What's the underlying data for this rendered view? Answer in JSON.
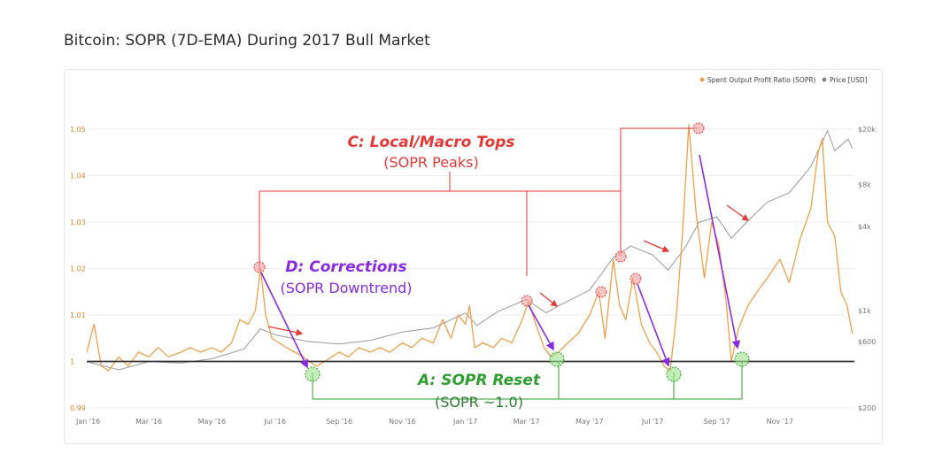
{
  "title": "Bitcoin: SOPR (7D-EMA) During 2017 Bull Market",
  "colors": {
    "sopr": "#f0a04b",
    "price": "#9a9a9a",
    "annot_red": "#e53935",
    "annot_purple": "#8a2be2",
    "annot_green": "#2e9e2e",
    "baseline": "#333333"
  },
  "legend": [
    {
      "label": "Spent Output Profit Ratio (SOPR)",
      "color": "#f0a04b"
    },
    {
      "label": "Price [USD]",
      "color": "#888888"
    }
  ],
  "annotations": {
    "c_title": "C: Local/Macro Tops",
    "c_sub": "(SOPR Peaks)",
    "d_title": "D: Corrections",
    "d_sub": "(SOPR Downtrend)",
    "a_title": "A: SOPR Reset",
    "a_sub": "(SOPR ~1.0)"
  },
  "chart_data": {
    "type": "line",
    "x_ticks": [
      "Jan '16",
      "Mar '16",
      "May '16",
      "Jul '16",
      "Sep '16",
      "Nov '16",
      "Jan '17",
      "Mar '17",
      "May '17",
      "Jul '17",
      "Sep '17",
      "Nov '17"
    ],
    "y_left_ticks": [
      "1.05",
      "1.04",
      "1.03",
      "1.02",
      "1.01",
      "1",
      "0.99"
    ],
    "y_left_range": [
      0.99,
      1.05
    ],
    "y_right_ticks": [
      "$20k",
      "$8k",
      "$4k",
      "$1k",
      "$600",
      "$200"
    ],
    "y_right_log": true,
    "baseline": 1.0,
    "series": [
      {
        "name": "Spent Output Profit Ratio (SOPR)",
        "axis": "left",
        "points": [
          [
            "2016-01-01",
            1.002
          ],
          [
            "2016-01-08",
            1.008
          ],
          [
            "2016-01-15",
            0.999
          ],
          [
            "2016-01-22",
            0.998
          ],
          [
            "2016-02-01",
            1.001
          ],
          [
            "2016-02-10",
            0.999
          ],
          [
            "2016-02-20",
            1.002
          ],
          [
            "2016-03-01",
            1.001
          ],
          [
            "2016-03-10",
            1.003
          ],
          [
            "2016-03-20",
            1.001
          ],
          [
            "2016-04-01",
            1.002
          ],
          [
            "2016-04-10",
            1.003
          ],
          [
            "2016-04-20",
            1.002
          ],
          [
            "2016-05-01",
            1.003
          ],
          [
            "2016-05-10",
            1.002
          ],
          [
            "2016-05-20",
            1.004
          ],
          [
            "2016-05-28",
            1.009
          ],
          [
            "2016-06-05",
            1.008
          ],
          [
            "2016-06-12",
            1.011
          ],
          [
            "2016-06-17",
            1.02
          ],
          [
            "2016-06-22",
            1.01
          ],
          [
            "2016-06-28",
            1.005
          ],
          [
            "2016-07-05",
            1.004
          ],
          [
            "2016-07-12",
            1.003
          ],
          [
            "2016-07-20",
            1.002
          ],
          [
            "2016-07-28",
            1.001
          ],
          [
            "2016-08-03",
            1.0
          ],
          [
            "2016-08-10",
            0.999
          ],
          [
            "2016-08-18",
            1.0
          ],
          [
            "2016-08-25",
            1.001
          ],
          [
            "2016-09-01",
            1.002
          ],
          [
            "2016-09-10",
            1.001
          ],
          [
            "2016-09-20",
            1.003
          ],
          [
            "2016-10-01",
            1.002
          ],
          [
            "2016-10-10",
            1.003
          ],
          [
            "2016-10-20",
            1.002
          ],
          [
            "2016-11-01",
            1.004
          ],
          [
            "2016-11-10",
            1.003
          ],
          [
            "2016-11-20",
            1.005
          ],
          [
            "2016-12-01",
            1.004
          ],
          [
            "2016-12-10",
            1.009
          ],
          [
            "2016-12-18",
            1.005
          ],
          [
            "2016-12-25",
            1.01
          ],
          [
            "2017-01-01",
            1.008
          ],
          [
            "2017-01-05",
            1.012
          ],
          [
            "2017-01-10",
            1.003
          ],
          [
            "2017-01-18",
            1.004
          ],
          [
            "2017-01-28",
            1.003
          ],
          [
            "2017-02-05",
            1.005
          ],
          [
            "2017-02-15",
            1.004
          ],
          [
            "2017-02-25",
            1.009
          ],
          [
            "2017-03-03",
            1.013
          ],
          [
            "2017-03-10",
            1.008
          ],
          [
            "2017-03-18",
            1.003
          ],
          [
            "2017-03-25",
            1.001
          ],
          [
            "2017-04-01",
            1.002
          ],
          [
            "2017-04-10",
            1.004
          ],
          [
            "2017-04-20",
            1.006
          ],
          [
            "2017-05-01",
            1.01
          ],
          [
            "2017-05-10",
            1.015
          ],
          [
            "2017-05-16",
            1.005
          ],
          [
            "2017-05-24",
            1.022
          ],
          [
            "2017-05-30",
            1.012
          ],
          [
            "2017-06-05",
            1.009
          ],
          [
            "2017-06-12",
            1.018
          ],
          [
            "2017-06-20",
            1.008
          ],
          [
            "2017-06-28",
            1.004
          ],
          [
            "2017-07-05",
            1.002
          ],
          [
            "2017-07-12",
            0.999
          ],
          [
            "2017-07-18",
            0.998
          ],
          [
            "2017-07-24",
            1.01
          ],
          [
            "2017-07-30",
            1.028
          ],
          [
            "2017-08-05",
            1.051
          ],
          [
            "2017-08-12",
            1.032
          ],
          [
            "2017-08-20",
            1.018
          ],
          [
            "2017-08-27",
            1.03
          ],
          [
            "2017-09-03",
            1.025
          ],
          [
            "2017-09-10",
            1.013
          ],
          [
            "2017-09-15",
            1.0
          ],
          [
            "2017-09-22",
            1.007
          ],
          [
            "2017-10-01",
            1.012
          ],
          [
            "2017-10-10",
            1.015
          ],
          [
            "2017-10-20",
            1.018
          ],
          [
            "2017-11-01",
            1.022
          ],
          [
            "2017-11-10",
            1.017
          ],
          [
            "2017-11-20",
            1.026
          ],
          [
            "2017-12-01",
            1.033
          ],
          [
            "2017-12-08",
            1.045
          ],
          [
            "2017-12-12",
            1.048
          ],
          [
            "2017-12-17",
            1.03
          ],
          [
            "2017-12-24",
            1.027
          ],
          [
            "2017-12-30",
            1.015
          ],
          [
            "2018-01-05",
            1.012
          ],
          [
            "2018-01-10",
            1.006
          ]
        ]
      },
      {
        "name": "Price [USD]",
        "axis": "right",
        "points": [
          [
            "2016-01-01",
            430
          ],
          [
            "2016-02-01",
            375
          ],
          [
            "2016-03-01",
            430
          ],
          [
            "2016-04-01",
            420
          ],
          [
            "2016-05-01",
            450
          ],
          [
            "2016-06-01",
            530
          ],
          [
            "2016-06-17",
            740
          ],
          [
            "2016-07-01",
            670
          ],
          [
            "2016-08-01",
            600
          ],
          [
            "2016-09-01",
            575
          ],
          [
            "2016-10-01",
            610
          ],
          [
            "2016-11-01",
            700
          ],
          [
            "2016-12-01",
            750
          ],
          [
            "2017-01-01",
            960
          ],
          [
            "2017-01-12",
            780
          ],
          [
            "2017-02-01",
            980
          ],
          [
            "2017-03-01",
            1200
          ],
          [
            "2017-03-20",
            960
          ],
          [
            "2017-04-01",
            1080
          ],
          [
            "2017-05-01",
            1400
          ],
          [
            "2017-05-24",
            2400
          ],
          [
            "2017-06-10",
            2900
          ],
          [
            "2017-07-01",
            2500
          ],
          [
            "2017-07-16",
            1950
          ],
          [
            "2017-08-01",
            2800
          ],
          [
            "2017-08-15",
            4300
          ],
          [
            "2017-09-01",
            4700
          ],
          [
            "2017-09-15",
            3300
          ],
          [
            "2017-10-01",
            4400
          ],
          [
            "2017-10-20",
            6000
          ],
          [
            "2017-11-10",
            7000
          ],
          [
            "2017-12-01",
            10800
          ],
          [
            "2017-12-17",
            19500
          ],
          [
            "2017-12-24",
            14000
          ],
          [
            "2018-01-06",
            17000
          ],
          [
            "2018-01-10",
            14500
          ]
        ]
      }
    ]
  }
}
